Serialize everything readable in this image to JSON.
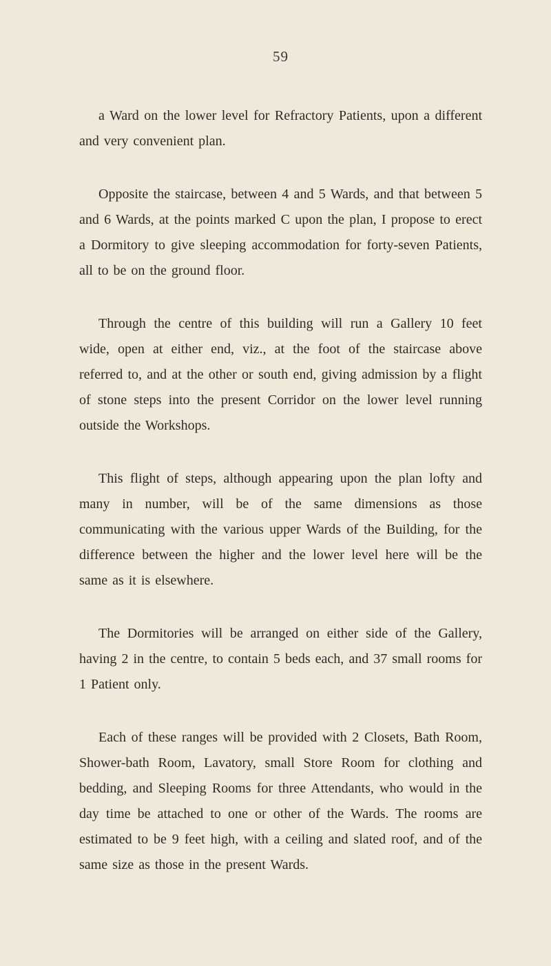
{
  "page_number": "59",
  "paragraphs": [
    "a Ward on the lower level for Refractory Patients, upon a different and very convenient plan.",
    "Opposite the staircase, between 4 and 5 Wards, and that between 5 and 6 Wards, at the points marked C upon the plan, I propose to erect a Dormitory to give sleeping accommodation for forty-seven Patients, all to be on the ground floor.",
    "Through the centre of this building will run a Gallery 10 feet wide, open at either end, viz., at the foot of the staircase above referred to, and at the other or south end, giving admission by a flight of stone steps into the present Corridor on the lower level running outside the Workshops.",
    "This flight of steps, although appearing upon the plan lofty and many in number, will be of the same dimensions as those communicating with the various upper Wards of the Building, for the difference between the higher and the lower level here will be the same as it is elsewhere.",
    "The Dormitories will be arranged on either side of the Gallery, having 2 in the centre, to contain 5 beds each, and 37 small rooms for 1 Patient only.",
    "Each of these ranges will be provided with 2 Closets, Bath Room, Shower-bath Room, Lavatory, small Store Room for clothing and bedding, and Sleeping Rooms for three Attendants, who would in the day time be attached to one or other of the Wards. The rooms are estimated to be 9 feet high, with a ceiling and slated roof, and of the same size as those in the present Wards."
  ],
  "style": {
    "background_color": "#ede9db",
    "text_color": "#2e2a25",
    "page_number_color": "#3a3530",
    "font_family": "Georgia, 'Times New Roman', serif",
    "body_font_size": 20,
    "page_number_font_size": 21,
    "line_height": 1.85,
    "text_indent": 28,
    "paragraph_spacing": 40
  }
}
